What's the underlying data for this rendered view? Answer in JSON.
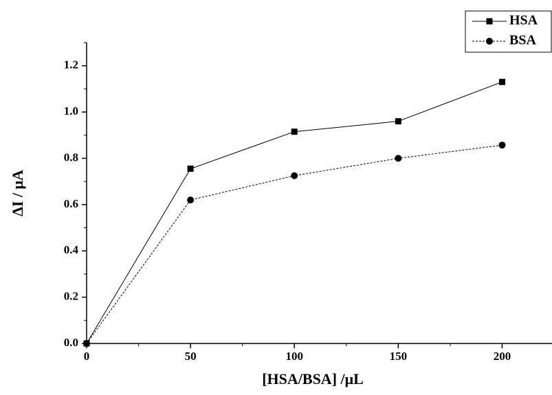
{
  "chart_data": {
    "type": "line",
    "x_label": "[HSA/BSA] /μL",
    "y_label": "ΔI / μA",
    "x": [
      0,
      50,
      100,
      150,
      200
    ],
    "series": [
      {
        "name": "HSA",
        "color": "#000000",
        "marker": "square",
        "dash": "solid",
        "values": [
          0,
          0.755,
          0.915,
          0.96,
          1.13
        ]
      },
      {
        "name": "BSA",
        "color": "#000000",
        "marker": "circle",
        "dash": "dashed",
        "values": [
          0,
          0.62,
          0.725,
          0.8,
          0.857
        ]
      }
    ],
    "xlim": [
      0,
      224
    ],
    "ylim": [
      0,
      1.3
    ],
    "xticks": [
      0,
      50,
      100,
      150,
      200
    ],
    "yticks": [
      {
        "value": 0,
        "label": "0.0"
      },
      0.2,
      0.4,
      0.6,
      0.8,
      {
        "value": 1,
        "label": "1.0"
      },
      1.2
    ],
    "legend": "top-right"
  }
}
